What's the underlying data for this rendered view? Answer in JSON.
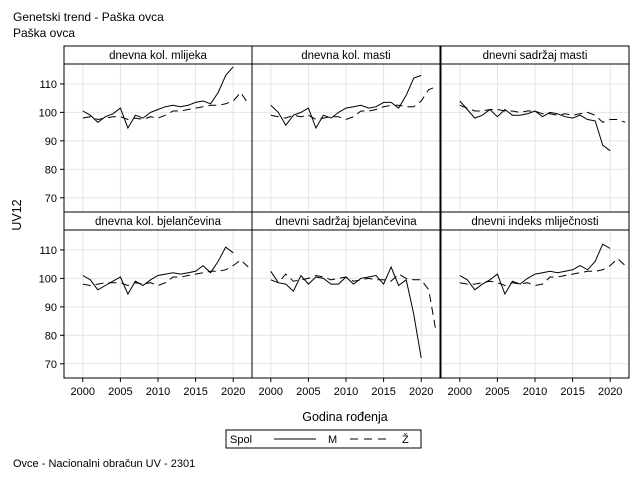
{
  "header": {
    "title": "Genetski trend - Paška ovca",
    "subtitle": "Paška ovca"
  },
  "footer": {
    "note": "Ovce - Nacionalni obračun UV - 2301"
  },
  "legend": {
    "title": "Spol",
    "items": [
      "M",
      "Ž"
    ],
    "placement": "bottom"
  },
  "chart_data": {
    "type": "line",
    "layout": "panel-grid 2x3",
    "xlabel": "Godina rođenja",
    "ylabel": "UV12",
    "xlim": [
      1997.5,
      2022.5
    ],
    "x_ticks": [
      2000,
      2005,
      2010,
      2015,
      2020
    ],
    "ylim": [
      65,
      117
    ],
    "y_ticks": [
      70,
      80,
      90,
      100,
      110
    ],
    "grid": true,
    "series_styles": {
      "M": {
        "dash": "none",
        "color": "#000000"
      },
      "Ž": {
        "dash": "long-dash",
        "color": "#000000"
      }
    },
    "panels": [
      {
        "title": "dnevna kol. mlijeka",
        "series": [
          {
            "name": "M",
            "x": [
              2000,
              2001,
              2002,
              2003,
              2004,
              2005,
              2006,
              2007,
              2008,
              2009,
              2010,
              2011,
              2012,
              2013,
              2014,
              2015,
              2016,
              2017,
              2018,
              2019,
              2020
            ],
            "y": [
              100.5,
              99,
              96.5,
              98.5,
              99.5,
              101.5,
              94.5,
              99,
              98,
              100,
              101,
              102,
              102.5,
              102,
              102.5,
              103.5,
              104,
              103,
              107,
              113,
              116
            ]
          },
          {
            "name": "Ž",
            "x": [
              2000,
              2001,
              2002,
              2003,
              2004,
              2005,
              2006,
              2007,
              2008,
              2009,
              2010,
              2011,
              2012,
              2013,
              2014,
              2015,
              2016,
              2017,
              2018,
              2019,
              2020,
              2021,
              2022
            ],
            "y": [
              98,
              98.5,
              97.5,
              98,
              98.5,
              98.5,
              97.5,
              98,
              97.5,
              98.5,
              98,
              99,
              100.5,
              100.5,
              101,
              101.5,
              102,
              102.5,
              102.5,
              103,
              104,
              107,
              103
            ]
          }
        ]
      },
      {
        "title": "dnevna kol. masti",
        "series": [
          {
            "name": "M",
            "x": [
              2000,
              2001,
              2002,
              2003,
              2004,
              2005,
              2006,
              2007,
              2008,
              2009,
              2010,
              2011,
              2012,
              2013,
              2014,
              2015,
              2016,
              2017,
              2018,
              2019,
              2020
            ],
            "y": [
              102.5,
              100,
              95.5,
              99,
              100,
              101.5,
              94.5,
              99,
              98,
              100,
              101.5,
              102,
              102.5,
              101.5,
              102,
              103.5,
              103.5,
              101.5,
              106,
              112,
              113
            ]
          },
          {
            "name": "Ž",
            "x": [
              2000,
              2001,
              2002,
              2003,
              2004,
              2005,
              2006,
              2007,
              2008,
              2009,
              2010,
              2011,
              2012,
              2013,
              2014,
              2015,
              2016,
              2017,
              2018,
              2019,
              2020,
              2021,
              2022
            ],
            "y": [
              99,
              98.5,
              98,
              99,
              98.5,
              99,
              97.5,
              98,
              98.5,
              98.5,
              97.5,
              98.5,
              100.5,
              100.5,
              101,
              102,
              102.5,
              102.5,
              102,
              102,
              104,
              108,
              109
            ]
          }
        ]
      },
      {
        "title": "dnevni sadržaj masti",
        "series": [
          {
            "name": "M",
            "x": [
              2000,
              2001,
              2002,
              2003,
              2004,
              2005,
              2006,
              2007,
              2008,
              2009,
              2010,
              2011,
              2012,
              2013,
              2014,
              2015,
              2016,
              2017,
              2018,
              2019,
              2020
            ],
            "y": [
              104,
              101,
              98,
              99,
              101,
              98.5,
              101,
              99,
              99,
              99.5,
              100.5,
              98.5,
              100,
              99.5,
              98.5,
              98,
              99,
              97.5,
              97,
              88.5,
              86.5
            ]
          },
          {
            "name": "Ž",
            "x": [
              2000,
              2001,
              2002,
              2003,
              2004,
              2005,
              2006,
              2007,
              2008,
              2009,
              2010,
              2011,
              2012,
              2013,
              2014,
              2015,
              2016,
              2017,
              2018,
              2019,
              2020,
              2021,
              2022
            ],
            "y": [
              102.5,
              101.5,
              100.5,
              100.5,
              101,
              101,
              100.5,
              100.5,
              100,
              100.5,
              100.5,
              99.5,
              99.5,
              99,
              99.5,
              99,
              99.5,
              100,
              99,
              96.5,
              97.5,
              97.5,
              96.5
            ]
          }
        ]
      },
      {
        "title": "dnevna kol. bjelančevina",
        "series": [
          {
            "name": "M",
            "x": [
              2000,
              2001,
              2002,
              2003,
              2004,
              2005,
              2006,
              2007,
              2008,
              2009,
              2010,
              2011,
              2012,
              2013,
              2014,
              2015,
              2016,
              2017,
              2018,
              2019,
              2020
            ],
            "y": [
              101,
              99.5,
              96,
              97.5,
              99,
              100.5,
              94.5,
              99,
              97.5,
              99.5,
              101,
              101.5,
              102,
              101.5,
              102,
              102.5,
              104.5,
              102,
              106,
              111,
              109
            ]
          },
          {
            "name": "Ž",
            "x": [
              2000,
              2001,
              2002,
              2003,
              2004,
              2005,
              2006,
              2007,
              2008,
              2009,
              2010,
              2011,
              2012,
              2013,
              2014,
              2015,
              2016,
              2017,
              2018,
              2019,
              2020,
              2021,
              2022
            ],
            "y": [
              98,
              97.5,
              98,
              98.5,
              98.5,
              98.5,
              97.5,
              98.5,
              98,
              98.5,
              97.5,
              98.5,
              100.5,
              100.5,
              101,
              101.5,
              102,
              102.5,
              102.5,
              103,
              104.5,
              106.5,
              104
            ]
          }
        ]
      },
      {
        "title": "dnevni sadržaj bjelančevina",
        "series": [
          {
            "name": "M",
            "x": [
              2000,
              2001,
              2002,
              2003,
              2004,
              2005,
              2006,
              2007,
              2008,
              2009,
              2010,
              2011,
              2012,
              2013,
              2014,
              2015,
              2016,
              2017,
              2018,
              2019,
              2020
            ],
            "y": [
              102.5,
              98.5,
              98,
              95.5,
              101,
              98,
              100.5,
              100,
              98,
              98,
              100.5,
              98,
              100,
              100.5,
              101,
              98,
              104,
              97.5,
              99.5,
              87.5,
              72
            ]
          },
          {
            "name": "Ž",
            "x": [
              2000,
              2001,
              2002,
              2003,
              2004,
              2005,
              2006,
              2007,
              2008,
              2009,
              2010,
              2011,
              2012,
              2013,
              2014,
              2015,
              2016,
              2017,
              2018,
              2019,
              2020,
              2021,
              2022
            ],
            "y": [
              99.5,
              98.5,
              101.5,
              99,
              99.5,
              100,
              101,
              100.5,
              99.5,
              100,
              100.5,
              99,
              99.5,
              100,
              99.5,
              99.5,
              99,
              101.5,
              100,
              99.5,
              99.5,
              96,
              81
            ]
          }
        ]
      },
      {
        "title": "dnevni indeks mliječnosti",
        "series": [
          {
            "name": "M",
            "x": [
              2000,
              2001,
              2002,
              2003,
              2004,
              2005,
              2006,
              2007,
              2008,
              2009,
              2010,
              2011,
              2012,
              2013,
              2014,
              2015,
              2016,
              2017,
              2018,
              2019,
              2020
            ],
            "y": [
              101,
              99.5,
              96,
              98,
              99.5,
              101.5,
              94.5,
              99,
              98,
              100,
              101.5,
              102,
              102.5,
              102,
              102.5,
              103,
              104.5,
              103,
              106,
              112,
              110.5
            ]
          },
          {
            "name": "Ž",
            "x": [
              2000,
              2001,
              2002,
              2003,
              2004,
              2005,
              2006,
              2007,
              2008,
              2009,
              2010,
              2011,
              2012,
              2013,
              2014,
              2015,
              2016,
              2017,
              2018,
              2019,
              2020,
              2021,
              2022
            ],
            "y": [
              98.5,
              98,
              98,
              98.5,
              99,
              98.5,
              97.5,
              98.5,
              98,
              98.5,
              97.5,
              98,
              100.5,
              100.5,
              101,
              101.5,
              102,
              102.5,
              102.5,
              103,
              104.5,
              107,
              104.5
            ]
          }
        ]
      }
    ]
  }
}
